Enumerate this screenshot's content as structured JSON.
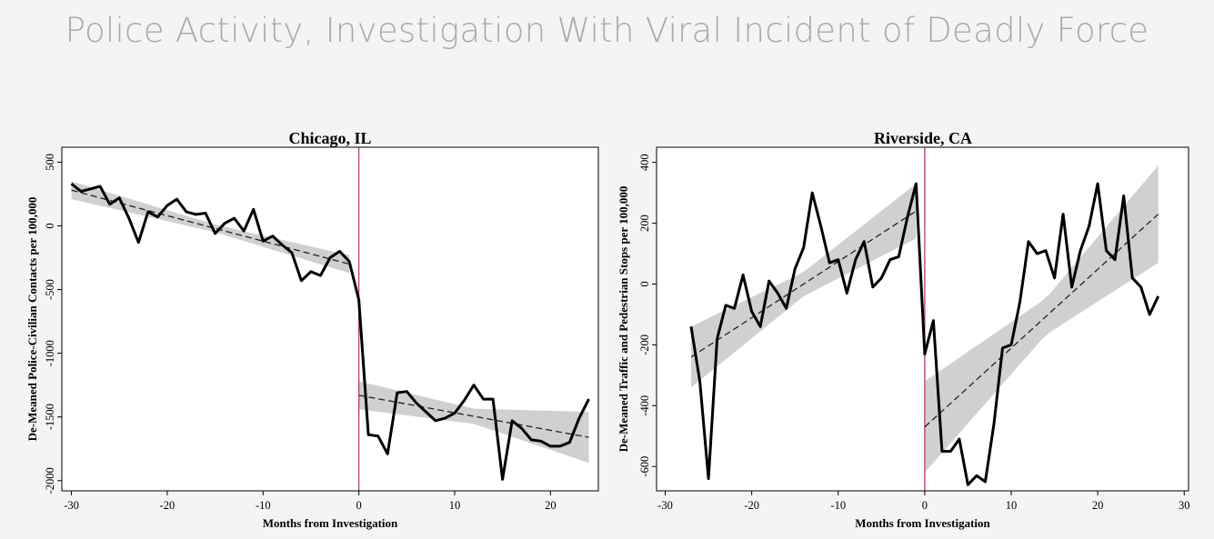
{
  "slide": {
    "title": "Police Activity, Investigation With Viral Incident of Deadly Force"
  },
  "colors": {
    "background": "#f4f4f4",
    "panel": "#ffffff",
    "line": "#000000",
    "band": "#c8c8c8",
    "vline": "#c04a5e",
    "title": "#a9a9a9"
  },
  "chart_data": [
    {
      "type": "line",
      "title": "Chicago, IL",
      "xlabel": "Months from Investigation",
      "ylabel": "De-Meaned Police-Civilian Contacts per 100,000",
      "xlim": [
        -31,
        25
      ],
      "ylim": [
        -2080,
        560
      ],
      "xticks": [
        -30,
        -20,
        -10,
        0,
        10,
        20
      ],
      "xtick_labels": [
        "-30",
        "-20",
        "-10",
        "0",
        "10",
        "20"
      ],
      "yticks": [
        500,
        0,
        -500,
        -1000,
        -1500,
        -2000
      ],
      "ytick_labels": [
        "500",
        "0",
        "-500",
        "-1000",
        "-1500",
        "-2000"
      ],
      "vline_x": 0,
      "series": [
        {
          "name": "contacts",
          "x": [
            -30,
            -29,
            -28,
            -27,
            -26,
            -25,
            -24,
            -23,
            -22,
            -21,
            -20,
            -19,
            -18,
            -17,
            -16,
            -15,
            -14,
            -13,
            -12,
            -11,
            -10,
            -9,
            -8,
            -7,
            -6,
            -5,
            -4,
            -3,
            -2,
            -1,
            0,
            1,
            2,
            3,
            4,
            5,
            6,
            7,
            8,
            9,
            10,
            11,
            12,
            13,
            14,
            15,
            16,
            17,
            18,
            19,
            20,
            21,
            22,
            23,
            24
          ],
          "y": [
            330,
            270,
            290,
            310,
            170,
            220,
            60,
            -130,
            110,
            70,
            160,
            210,
            110,
            90,
            100,
            -60,
            20,
            60,
            -40,
            130,
            -120,
            -80,
            -150,
            -210,
            -430,
            -360,
            -390,
            -250,
            -200,
            -280,
            -580,
            -1640,
            -1650,
            -1790,
            -1310,
            -1300,
            -1390,
            -1460,
            -1530,
            -1510,
            -1470,
            -1370,
            -1250,
            -1360,
            -1360,
            -1990,
            -1530,
            -1590,
            -1680,
            -1690,
            -1730,
            -1730,
            -1700,
            -1510,
            -1360
          ]
        }
      ],
      "fits": [
        {
          "x": [
            -30,
            -1
          ],
          "y": [
            280,
            -300
          ],
          "ci_half": [
            [
              -30,
              70
            ],
            [
              -15,
              30
            ],
            [
              -1,
              70
            ]
          ]
        },
        {
          "x": [
            0,
            24
          ],
          "y": [
            -1330,
            -1660
          ],
          "ci_half": [
            [
              0,
              110
            ],
            [
              12,
              60
            ],
            [
              24,
              200
            ]
          ]
        }
      ]
    },
    {
      "type": "line",
      "title": "Riverside, CA",
      "xlabel": "Months from Investigation",
      "ylabel": "De-Meaned Traffic and Pedestrian Stops per 100,000",
      "xlim": [
        -31,
        30.5
      ],
      "ylim": [
        -680,
        420
      ],
      "xticks": [
        -30,
        -20,
        -10,
        0,
        10,
        20,
        30
      ],
      "xtick_labels": [
        "-30",
        "-20",
        "-10",
        "0",
        "10",
        "20",
        "30"
      ],
      "yticks": [
        400,
        200,
        0,
        -200,
        -400,
        -600
      ],
      "ytick_labels": [
        "400",
        "200",
        "0",
        "-200",
        "-400",
        "-600"
      ],
      "vline_x": 0,
      "series": [
        {
          "name": "stops",
          "x": [
            -27,
            -26,
            -25,
            -24,
            -23,
            -22,
            -21,
            -20,
            -19,
            -18,
            -17,
            -16,
            -15,
            -14,
            -13,
            -12,
            -11,
            -10,
            -9,
            -8,
            -7,
            -6,
            -5,
            -4,
            -3,
            -2,
            -1,
            0,
            1,
            2,
            3,
            4,
            5,
            6,
            7,
            8,
            9,
            10,
            11,
            12,
            13,
            14,
            15,
            16,
            17,
            18,
            19,
            20,
            21,
            22,
            23,
            24,
            25,
            26,
            27
          ],
          "y": [
            -140,
            -320,
            -640,
            -180,
            -70,
            -80,
            30,
            -90,
            -140,
            10,
            -30,
            -80,
            50,
            120,
            300,
            190,
            70,
            80,
            -30,
            80,
            140,
            -10,
            20,
            80,
            90,
            220,
            330,
            -230,
            -120,
            -550,
            -550,
            -510,
            -660,
            -630,
            -650,
            -460,
            -210,
            -200,
            -60,
            140,
            100,
            110,
            20,
            230,
            -10,
            110,
            190,
            330,
            110,
            80,
            290,
            20,
            -10,
            -100,
            -40
          ]
        }
      ],
      "fits": [
        {
          "x": [
            -27,
            -1
          ],
          "y": [
            -240,
            240
          ],
          "ci_half": [
            [
              -27,
              100
            ],
            [
              -14,
              40
            ],
            [
              -1,
              90
            ]
          ]
        },
        {
          "x": [
            0,
            27
          ],
          "y": [
            -470,
            230
          ],
          "ci_half": [
            [
              0,
              150
            ],
            [
              14,
              60
            ],
            [
              27,
              160
            ]
          ]
        }
      ]
    }
  ]
}
